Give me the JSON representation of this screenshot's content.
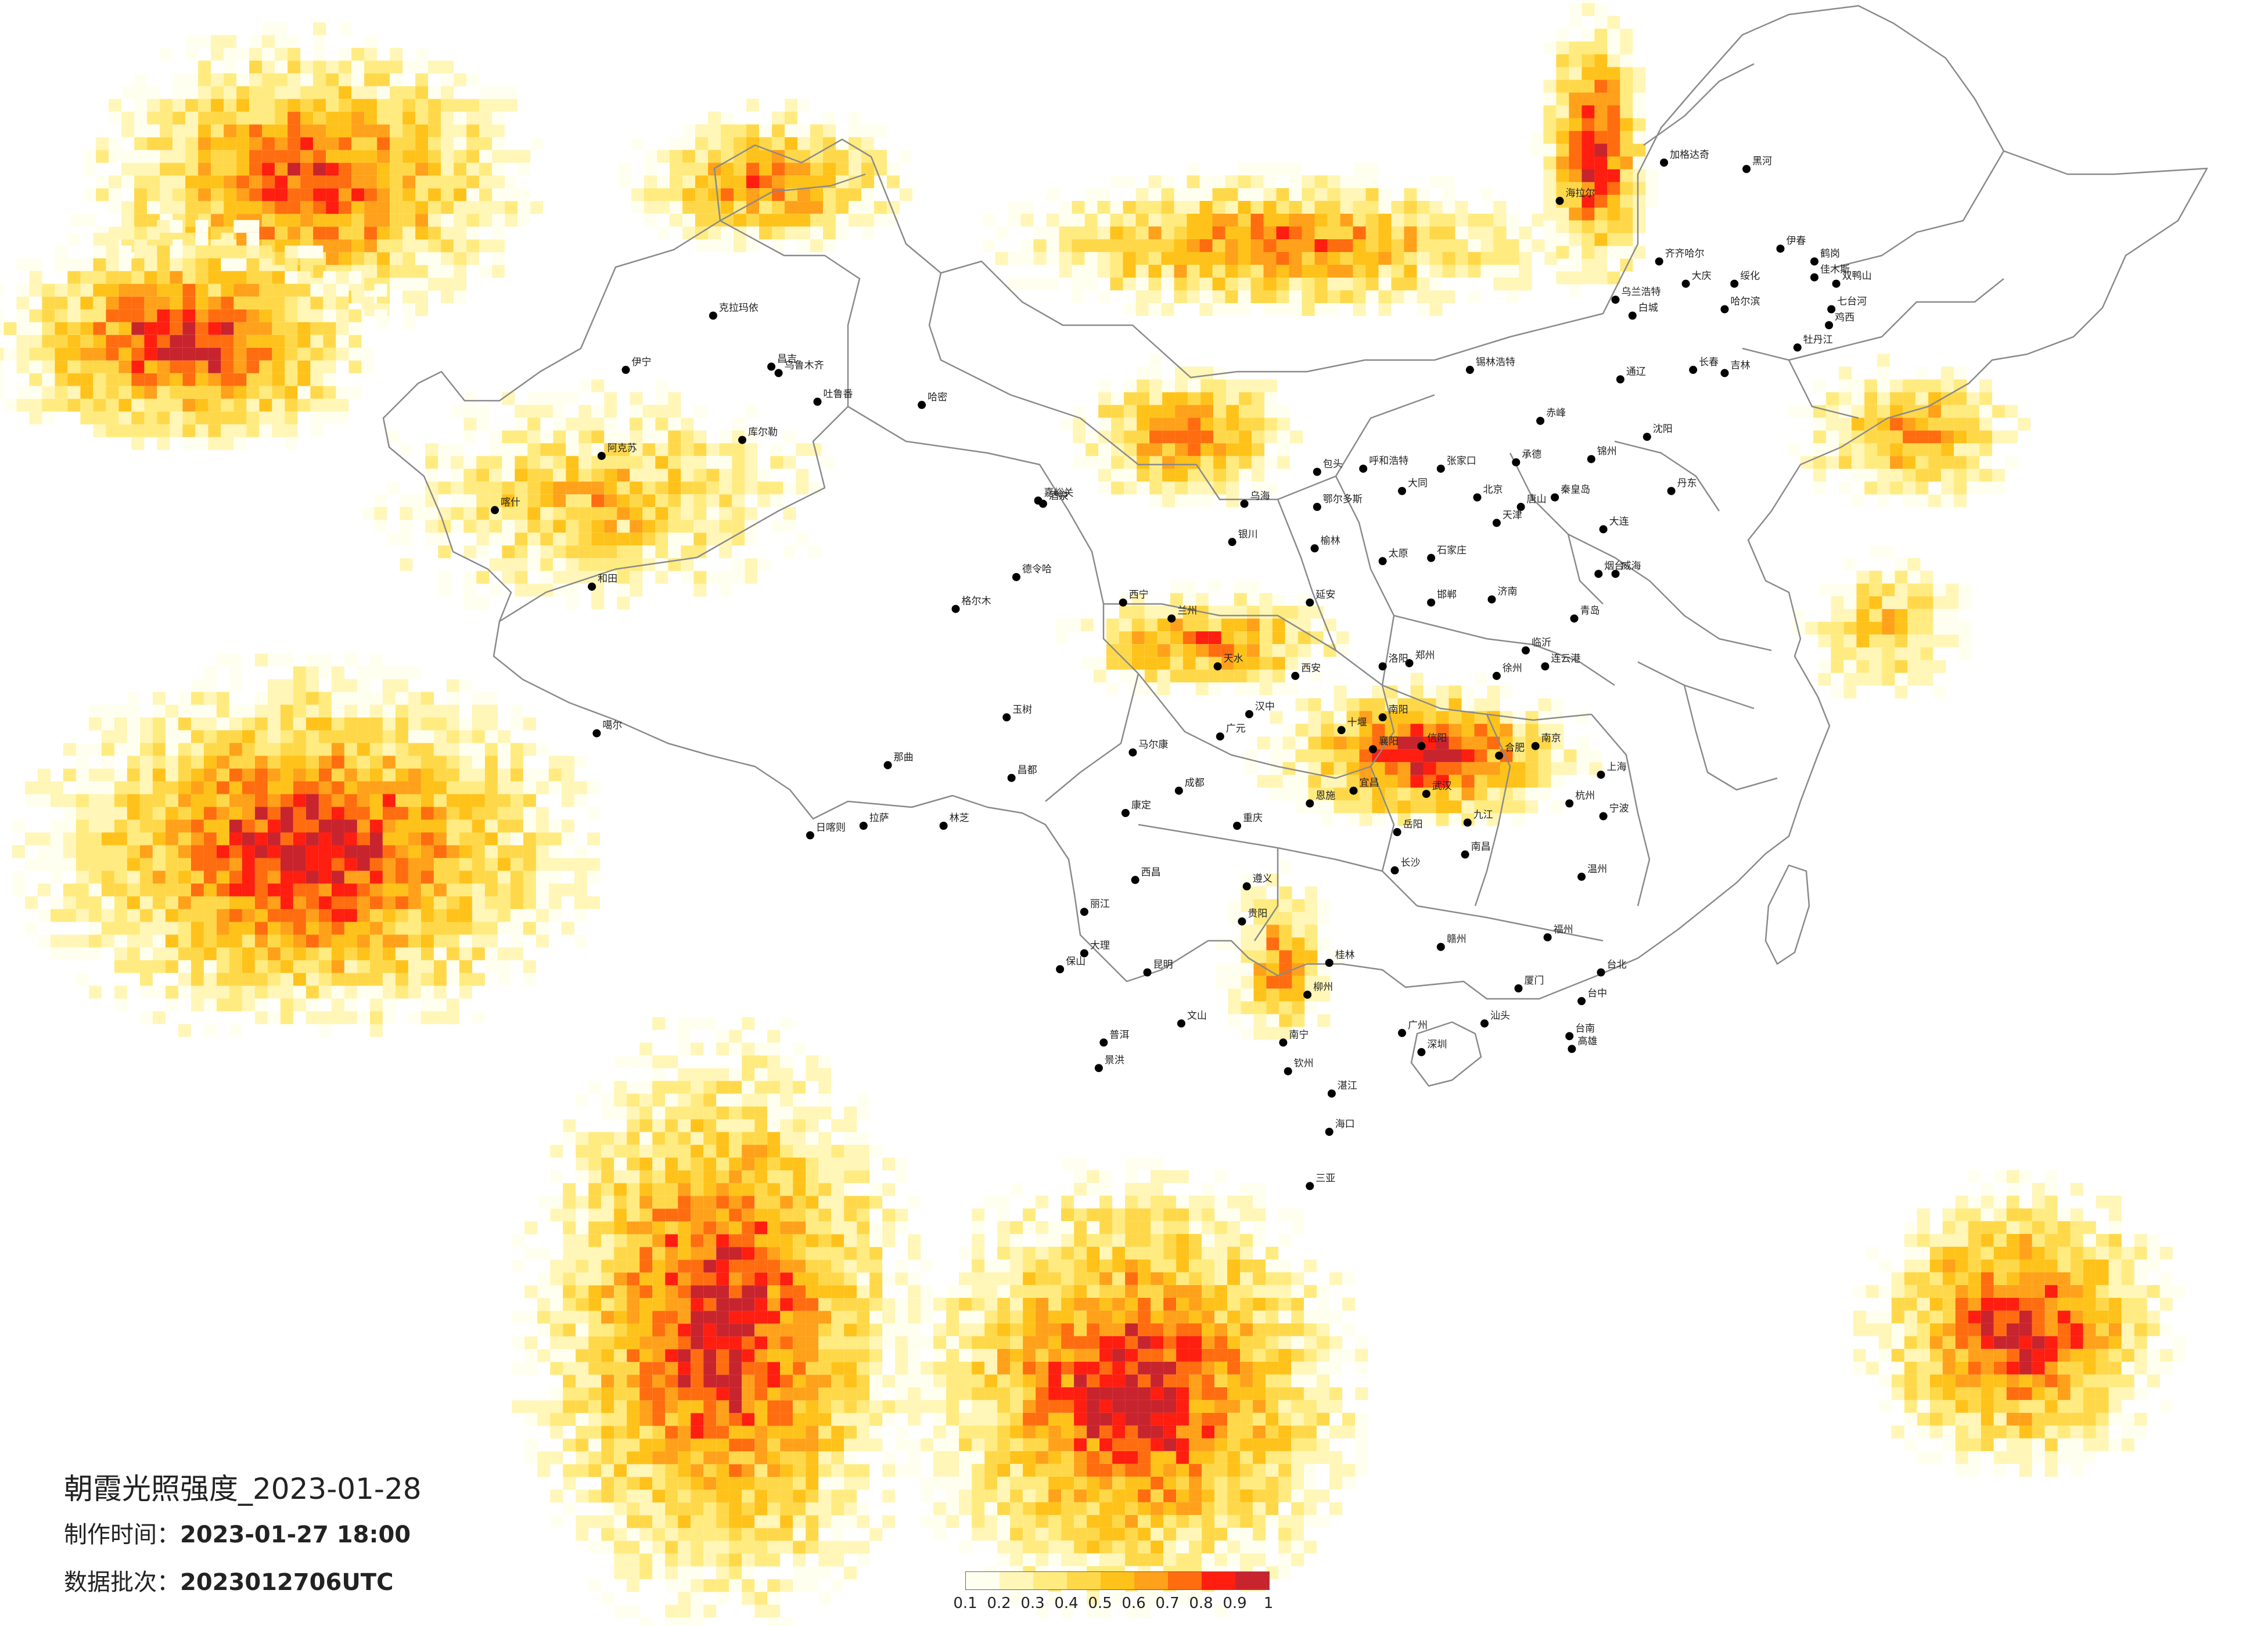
{
  "info": {
    "title": "朝霞光照强度_2023-01-28",
    "made_label": "制作时间：",
    "made_value": "2023-01-27 18:00",
    "batch_label": "数据批次：",
    "batch_value": "2023012706UTC"
  },
  "legend": {
    "colors": [
      "#fffff0",
      "#fff6b8",
      "#ffeb80",
      "#ffd84a",
      "#ffc21a",
      "#ffa11a",
      "#ff6d10",
      "#ff1e10",
      "#c8242e"
    ],
    "ticks": [
      "0.1",
      "0.2",
      "0.3",
      "0.4",
      "0.5",
      "0.6",
      "0.7",
      "0.8",
      "0.9",
      "1"
    ]
  },
  "map_data": {
    "variable": "朝霞光照强度",
    "scale": [
      0.1,
      1.0
    ],
    "blobs": [
      {
        "region": "far-northwest",
        "lon": [
          60,
          76
        ],
        "lat": [
          46,
          54
        ],
        "peak": 0.9
      },
      {
        "region": "kazakh-steppe",
        "lon": [
          56,
          70
        ],
        "lat": [
          42,
          48
        ],
        "peak": 1.0
      },
      {
        "region": "xinjiang-west",
        "lon": [
          72,
          88
        ],
        "lat": [
          37,
          43
        ],
        "peak": 0.6
      },
      {
        "region": "tianshan",
        "lon": [
          82,
          92
        ],
        "lat": [
          48,
          52
        ],
        "peak": 0.8
      },
      {
        "region": "mongolia",
        "lon": [
          98,
          118
        ],
        "lat": [
          46,
          50
        ],
        "peak": 0.8
      },
      {
        "region": "inner-mongolia-south",
        "lon": [
          100,
          108
        ],
        "lat": [
          40,
          44
        ],
        "peak": 0.8
      },
      {
        "region": "greater-khingan",
        "lon": [
          119,
          123
        ],
        "lat": [
          47,
          55
        ],
        "peak": 1.0
      },
      {
        "region": "qinghai-gansu",
        "lon": [
          100,
          110
        ],
        "lat": [
          34,
          37
        ],
        "peak": 0.8
      },
      {
        "region": "qinling-huaihe",
        "lon": [
          108,
          120
        ],
        "lat": [
          30,
          34
        ],
        "peak": 1.0
      },
      {
        "region": "yunnan-guizhou",
        "lon": [
          106,
          110
        ],
        "lat": [
          23,
          28
        ],
        "peak": 0.7
      },
      {
        "region": "india-pakistan",
        "lon": [
          58,
          78
        ],
        "lat": [
          24,
          34
        ],
        "peak": 1.0
      },
      {
        "region": "bay-of-bengal",
        "lon": [
          78,
          92
        ],
        "lat": [
          6,
          22
        ],
        "peak": 1.0
      },
      {
        "region": "indochina",
        "lon": [
          94,
          110
        ],
        "lat": [
          6,
          18
        ],
        "peak": 1.0
      },
      {
        "region": "west-pacific",
        "lon": [
          133,
          144
        ],
        "lat": [
          10,
          18
        ],
        "peak": 1.0
      },
      {
        "region": "northeast-korea",
        "lon": [
          130,
          138
        ],
        "lat": [
          40,
          44
        ],
        "peak": 0.7
      },
      {
        "region": "korea-japan",
        "lon": [
          130,
          136
        ],
        "lat": [
          34,
          38
        ],
        "peak": 0.6
      }
    ]
  },
  "cities": [
    {
      "name": "克拉玛依",
      "lon": 84.9,
      "lat": 45.6
    },
    {
      "name": "伊宁",
      "lon": 81.3,
      "lat": 43.9
    },
    {
      "name": "昌吉",
      "lon": 87.3,
      "lat": 44.0
    },
    {
      "name": "乌鲁木齐",
      "lon": 87.6,
      "lat": 43.8
    },
    {
      "name": "吐鲁番",
      "lon": 89.2,
      "lat": 42.9
    },
    {
      "name": "哈密",
      "lon": 93.5,
      "lat": 42.8
    },
    {
      "name": "库尔勒",
      "lon": 86.1,
      "lat": 41.7
    },
    {
      "name": "阿克苏",
      "lon": 80.3,
      "lat": 41.2
    },
    {
      "name": "喀什",
      "lon": 75.9,
      "lat": 39.5
    },
    {
      "name": "和田",
      "lon": 79.9,
      "lat": 37.1
    },
    {
      "name": "嘉峪关",
      "lon": 98.3,
      "lat": 39.8
    },
    {
      "name": "酒泉",
      "lon": 98.5,
      "lat": 39.7
    },
    {
      "name": "德令哈",
      "lon": 97.4,
      "lat": 37.4
    },
    {
      "name": "格尔木",
      "lon": 94.9,
      "lat": 36.4
    },
    {
      "name": "西宁",
      "lon": 101.8,
      "lat": 36.6
    },
    {
      "name": "兰州",
      "lon": 103.8,
      "lat": 36.1
    },
    {
      "name": "银川",
      "lon": 106.3,
      "lat": 38.5
    },
    {
      "name": "呼和浩特",
      "lon": 111.7,
      "lat": 40.8
    },
    {
      "name": "包头",
      "lon": 109.8,
      "lat": 40.7
    },
    {
      "name": "乌海",
      "lon": 106.8,
      "lat": 39.7
    },
    {
      "name": "鄂尔多斯",
      "lon": 109.8,
      "lat": 39.6
    },
    {
      "name": "张家口",
      "lon": 114.9,
      "lat": 40.8
    },
    {
      "name": "北京",
      "lon": 116.4,
      "lat": 39.9
    },
    {
      "name": "天津",
      "lon": 117.2,
      "lat": 39.1
    },
    {
      "name": "石家庄",
      "lon": 114.5,
      "lat": 38.0
    },
    {
      "name": "太原",
      "lon": 112.5,
      "lat": 37.9
    },
    {
      "name": "济南",
      "lon": 117.0,
      "lat": 36.7
    },
    {
      "name": "青岛",
      "lon": 120.4,
      "lat": 36.1
    },
    {
      "name": "郑州",
      "lon": 113.6,
      "lat": 34.7
    },
    {
      "name": "西安",
      "lon": 108.9,
      "lat": 34.3
    },
    {
      "name": "天水",
      "lon": 105.7,
      "lat": 34.6
    },
    {
      "name": "南京",
      "lon": 118.8,
      "lat": 32.1
    },
    {
      "name": "合肥",
      "lon": 117.3,
      "lat": 31.8
    },
    {
      "name": "上海",
      "lon": 121.5,
      "lat": 31.2
    },
    {
      "name": "杭州",
      "lon": 120.2,
      "lat": 30.3
    },
    {
      "name": "武汉",
      "lon": 114.3,
      "lat": 30.6
    },
    {
      "name": "襄阳",
      "lon": 112.1,
      "lat": 32.0
    },
    {
      "name": "十堰",
      "lon": 110.8,
      "lat": 32.6
    },
    {
      "name": "汉中",
      "lon": 107.0,
      "lat": 33.1
    },
    {
      "name": "广元",
      "lon": 105.8,
      "lat": 32.4
    },
    {
      "name": "成都",
      "lon": 104.1,
      "lat": 30.7
    },
    {
      "name": "重庆",
      "lon": 106.5,
      "lat": 29.6
    },
    {
      "name": "贵阳",
      "lon": 106.7,
      "lat": 26.6
    },
    {
      "name": "昆明",
      "lon": 102.8,
      "lat": 25.0
    },
    {
      "name": "大理",
      "lon": 100.2,
      "lat": 25.6
    },
    {
      "name": "南宁",
      "lon": 108.4,
      "lat": 22.8
    },
    {
      "name": "桂林",
      "lon": 110.3,
      "lat": 25.3
    },
    {
      "name": "长沙",
      "lon": 113.0,
      "lat": 28.2
    },
    {
      "name": "南昌",
      "lon": 115.9,
      "lat": 28.7
    },
    {
      "name": "福州",
      "lon": 119.3,
      "lat": 26.1
    },
    {
      "name": "厦门",
      "lon": 118.1,
      "lat": 24.5
    },
    {
      "name": "广州",
      "lon": 113.3,
      "lat": 23.1
    },
    {
      "name": "深圳",
      "lon": 114.1,
      "lat": 22.5
    },
    {
      "name": "海口",
      "lon": 110.3,
      "lat": 20.0
    },
    {
      "name": "三亚",
      "lon": 109.5,
      "lat": 18.3
    },
    {
      "name": "台北",
      "lon": 121.5,
      "lat": 25.0
    },
    {
      "name": "台中",
      "lon": 120.7,
      "lat": 24.1
    },
    {
      "name": "台南",
      "lon": 120.2,
      "lat": 23.0
    },
    {
      "name": "高雄",
      "lon": 120.3,
      "lat": 22.6
    },
    {
      "name": "沈阳",
      "lon": 123.4,
      "lat": 41.8
    },
    {
      "name": "大连",
      "lon": 121.6,
      "lat": 38.9
    },
    {
      "name": "长春",
      "lon": 125.3,
      "lat": 43.9
    },
    {
      "name": "吉林",
      "lon": 126.6,
      "lat": 43.8
    },
    {
      "name": "哈尔滨",
      "lon": 126.6,
      "lat": 45.8
    },
    {
      "name": "齐齐哈尔",
      "lon": 123.9,
      "lat": 47.3
    },
    {
      "name": "大庆",
      "lon": 125.0,
      "lat": 46.6
    },
    {
      "name": "佳木斯",
      "lon": 130.3,
      "lat": 46.8
    },
    {
      "name": "鹤岗",
      "lon": 130.3,
      "lat": 47.3
    },
    {
      "name": "双鸭山",
      "lon": 131.2,
      "lat": 46.6
    },
    {
      "name": "七台河",
      "lon": 131.0,
      "lat": 45.8
    },
    {
      "name": "鸡西",
      "lon": 130.9,
      "lat": 45.3
    },
    {
      "name": "牡丹江",
      "lon": 129.6,
      "lat": 44.6
    },
    {
      "name": "绥化",
      "lon": 127.0,
      "lat": 46.6
    },
    {
      "name": "伊春",
      "lon": 128.9,
      "lat": 47.7
    },
    {
      "name": "黑河",
      "lon": 127.5,
      "lat": 50.2
    },
    {
      "name": "加格达奇",
      "lon": 124.1,
      "lat": 50.4
    },
    {
      "name": "海拉尔",
      "lon": 119.8,
      "lat": 49.2
    },
    {
      "name": "乌兰浩特",
      "lon": 122.1,
      "lat": 46.1
    },
    {
      "name": "白城",
      "lon": 122.8,
      "lat": 45.6
    },
    {
      "name": "锡林浩特",
      "lon": 116.1,
      "lat": 43.9
    },
    {
      "name": "通辽",
      "lon": 122.3,
      "lat": 43.6
    },
    {
      "name": "赤峰",
      "lon": 119.0,
      "lat": 42.3
    },
    {
      "name": "承德",
      "lon": 118.0,
      "lat": 41.0
    },
    {
      "name": "唐山",
      "lon": 118.2,
      "lat": 39.6
    },
    {
      "name": "秦皇岛",
      "lon": 119.6,
      "lat": 39.9
    },
    {
      "name": "锦州",
      "lon": 121.1,
      "lat": 41.1
    },
    {
      "name": "丹东",
      "lon": 124.4,
      "lat": 40.1
    },
    {
      "name": "烟台",
      "lon": 121.4,
      "lat": 37.5
    },
    {
      "name": "威海",
      "lon": 122.1,
      "lat": 37.5
    },
    {
      "name": "拉萨",
      "lon": 91.1,
      "lat": 29.6
    },
    {
      "name": "日喀则",
      "lon": 88.9,
      "lat": 29.3
    },
    {
      "name": "林芝",
      "lon": 94.4,
      "lat": 29.6
    },
    {
      "name": "那曲",
      "lon": 92.1,
      "lat": 31.5
    },
    {
      "name": "昌都",
      "lon": 97.2,
      "lat": 31.1
    },
    {
      "name": "玉树",
      "lon": 97.0,
      "lat": 33.0
    },
    {
      "name": "噶尔",
      "lon": 80.1,
      "lat": 32.5
    },
    {
      "name": "马尔康",
      "lon": 102.2,
      "lat": 31.9
    },
    {
      "name": "康定",
      "lon": 101.9,
      "lat": 30.0
    },
    {
      "name": "西昌",
      "lon": 102.3,
      "lat": 27.9
    },
    {
      "name": "丽江",
      "lon": 100.2,
      "lat": 26.9
    },
    {
      "name": "保山",
      "lon": 99.2,
      "lat": 25.1
    },
    {
      "name": "景洪",
      "lon": 100.8,
      "lat": 22.0
    },
    {
      "name": "普洱",
      "lon": 101.0,
      "lat": 22.8
    },
    {
      "name": "文山",
      "lon": 104.2,
      "lat": 23.4
    },
    {
      "name": "遵义",
      "lon": 106.9,
      "lat": 27.7
    },
    {
      "name": "宜昌",
      "lon": 111.3,
      "lat": 30.7
    },
    {
      "name": "恩施",
      "lon": 109.5,
      "lat": 30.3
    },
    {
      "name": "岳阳",
      "lon": 113.1,
      "lat": 29.4
    },
    {
      "name": "九江",
      "lon": 116.0,
      "lat": 29.7
    },
    {
      "name": "赣州",
      "lon": 114.9,
      "lat": 25.8
    },
    {
      "name": "温州",
      "lon": 120.7,
      "lat": 28.0
    },
    {
      "name": "宁波",
      "lon": 121.6,
      "lat": 29.9
    },
    {
      "name": "徐州",
      "lon": 117.2,
      "lat": 34.3
    },
    {
      "name": "连云港",
      "lon": 119.2,
      "lat": 34.6
    },
    {
      "name": "洛阳",
      "lon": 112.5,
      "lat": 34.6
    },
    {
      "name": "信阳",
      "lon": 114.1,
      "lat": 32.1
    },
    {
      "name": "南阳",
      "lon": 112.5,
      "lat": 33.0
    },
    {
      "name": "柳州",
      "lon": 109.4,
      "lat": 24.3
    },
    {
      "name": "湛江",
      "lon": 110.4,
      "lat": 21.2
    },
    {
      "name": "汕头",
      "lon": 116.7,
      "lat": 23.4
    },
    {
      "name": "钦州",
      "lon": 108.6,
      "lat": 21.9
    },
    {
      "name": "延安",
      "lon": 109.5,
      "lat": 36.6
    },
    {
      "name": "榆林",
      "lon": 109.7,
      "lat": 38.3
    },
    {
      "name": "大同",
      "lon": 113.3,
      "lat": 40.1
    },
    {
      "name": "邯郸",
      "lon": 114.5,
      "lat": 36.6
    },
    {
      "name": "临沂",
      "lon": 118.4,
      "lat": 35.1
    }
  ]
}
